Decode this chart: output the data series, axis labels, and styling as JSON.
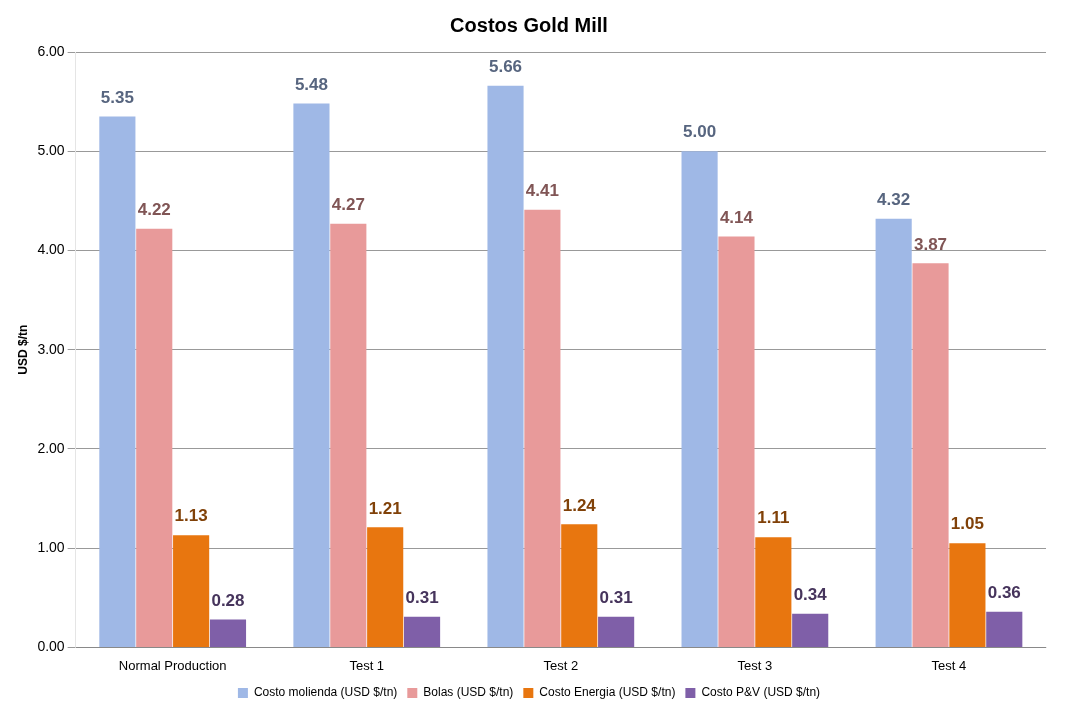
{
  "chart_data": {
    "type": "bar",
    "title": "Costos Gold Mill",
    "ylabel": "USD $/tn",
    "categories": [
      "Normal Production",
      "Test 1",
      "Test 2",
      "Test 3",
      "Test 4"
    ],
    "series": [
      {
        "name": "Costo molienda (USD $/tn)",
        "color": "#9fb8e6",
        "values": [
          5.35,
          5.48,
          5.66,
          5.0,
          4.32
        ],
        "value_labels": [
          "5.35",
          "5.48",
          "5.66",
          "5.00",
          "4.32"
        ]
      },
      {
        "name": "Bolas (USD $/tn)",
        "color": "#e89a9a",
        "values": [
          4.22,
          4.27,
          4.41,
          4.14,
          3.87
        ],
        "value_labels": [
          "4.22",
          "4.27",
          "4.41",
          "4.14",
          "3.87"
        ]
      },
      {
        "name": "Costo Energia (USD $/tn)",
        "color": "#e8760f",
        "values": [
          1.13,
          1.21,
          1.24,
          1.11,
          1.05
        ],
        "value_labels": [
          "1.13",
          "1.21",
          "1.24",
          "1.11",
          "1.05"
        ]
      },
      {
        "name": "Costo P&V (USD $/tn)",
        "color": "#7f5fa8",
        "values": [
          0.28,
          0.31,
          0.31,
          0.34,
          0.36
        ],
        "value_labels": [
          "0.28",
          "0.31",
          "0.31",
          "0.34",
          "0.36"
        ]
      }
    ],
    "ylim": [
      0,
      6
    ],
    "yticks": [
      {
        "value": 0,
        "label": "0.00"
      },
      {
        "value": 1,
        "label": "1.00"
      },
      {
        "value": 2,
        "label": "2.00"
      },
      {
        "value": 3,
        "label": "3.00"
      },
      {
        "value": 4,
        "label": "4.00"
      },
      {
        "value": 5,
        "label": "5.00"
      },
      {
        "value": 6,
        "label": "6.00"
      }
    ],
    "grid": "y",
    "legend": "bottom"
  }
}
